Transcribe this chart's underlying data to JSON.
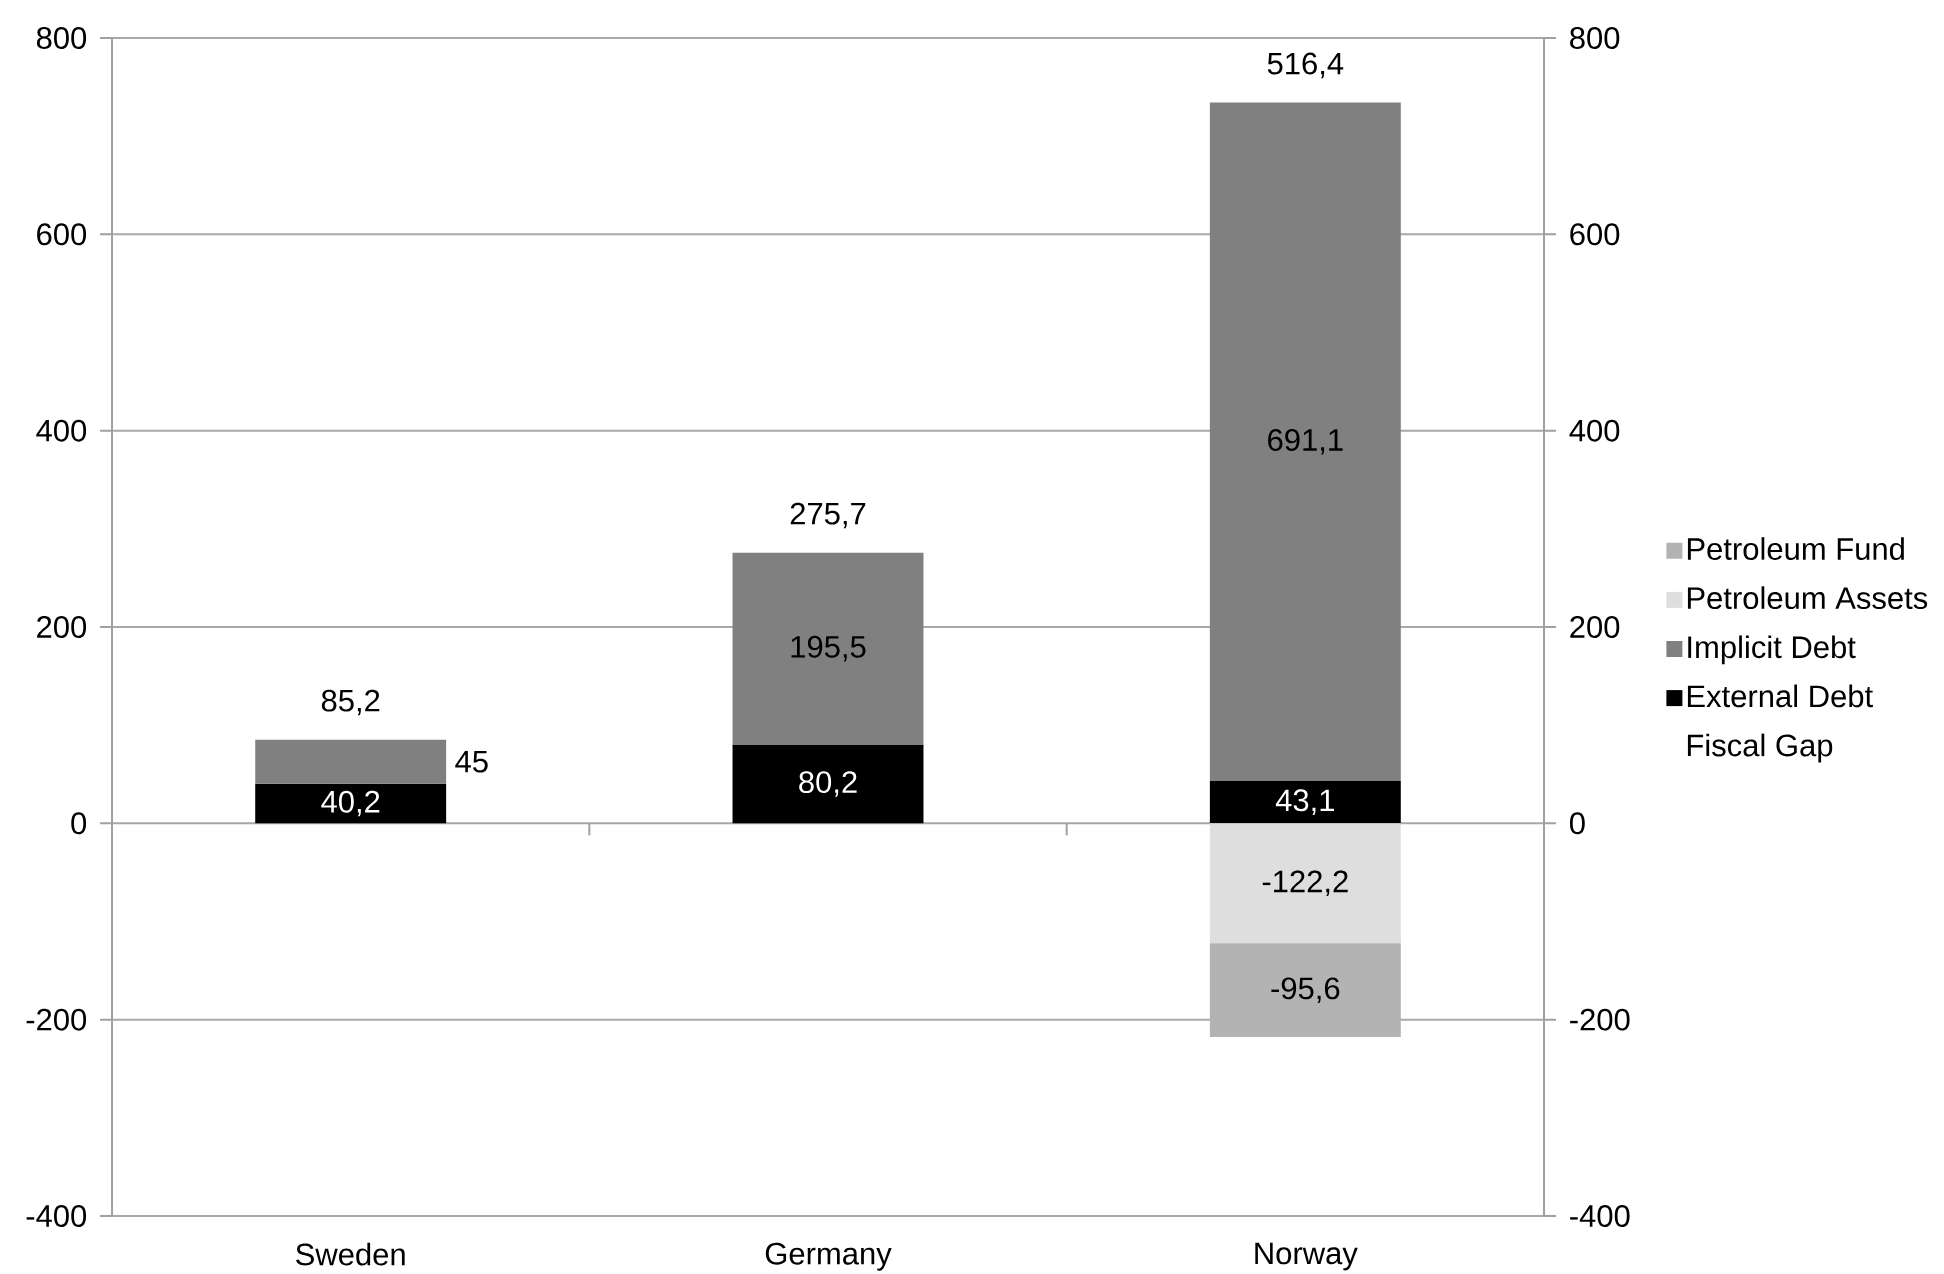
{
  "chart_data": {
    "type": "bar",
    "stacked": true,
    "categories": [
      "Sweden",
      "Germany",
      "Norway"
    ],
    "series": [
      {
        "name": "External Debt",
        "color": "#000000",
        "values": [
          40.2,
          80.2,
          43.1
        ],
        "value_labels": [
          "40,2",
          "80,2",
          "43,1"
        ]
      },
      {
        "name": "Implicit Debt",
        "color": "#808080",
        "values": [
          45,
          195.5,
          691.1
        ],
        "value_labels": [
          "45",
          "195,5",
          "691,1"
        ]
      },
      {
        "name": "Petroleum Assets",
        "color": "#dedede",
        "values": [
          null,
          null,
          -122.2
        ],
        "value_labels": [
          null,
          null,
          "-122,2"
        ]
      },
      {
        "name": "Petroleum Fund",
        "color": "#b3b3b3",
        "values": [
          null,
          null,
          -95.6
        ],
        "value_labels": [
          null,
          null,
          "-95,6"
        ]
      }
    ],
    "totals": [
      "85,2",
      "275,7",
      "516,4"
    ],
    "annotations": [
      "Fiscal Gap"
    ],
    "ylim": [
      -400,
      800
    ],
    "yticks": [
      -400,
      -200,
      0,
      200,
      400,
      600,
      800
    ],
    "y2lim": [
      -400,
      800
    ],
    "y2ticks": [
      -400,
      -200,
      0,
      200,
      400,
      600,
      800
    ],
    "grid": "y",
    "legend": "right"
  }
}
